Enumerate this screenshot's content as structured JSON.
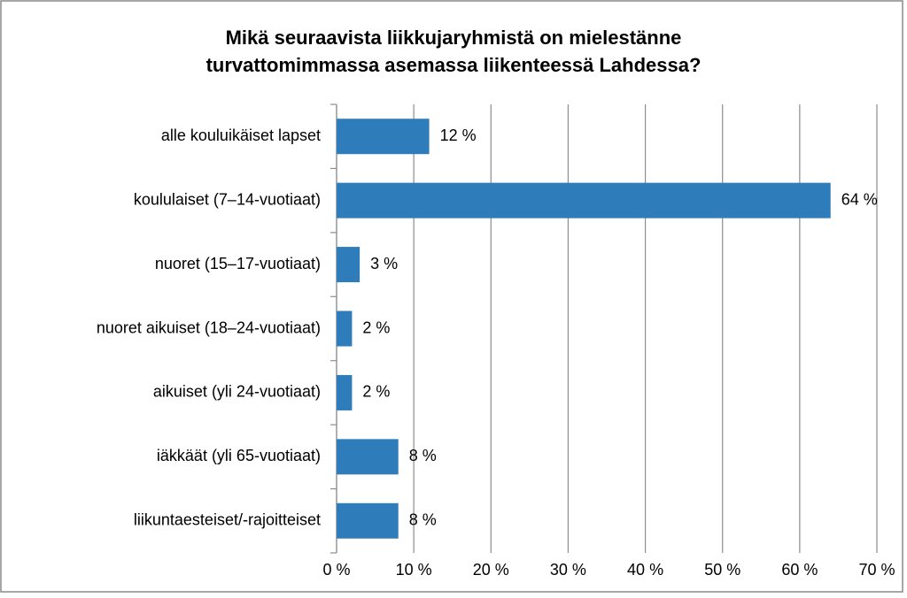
{
  "chart_data": {
    "type": "bar",
    "orientation": "horizontal",
    "title": [
      "Mikä seuraavista liikkujaryhmistä on mielestänne",
      "turvattomimmassa asemassa liikenteessä Lahdessa?"
    ],
    "categories": [
      "alle kouluikäiset lapset",
      "koululaiset (7–14-vuotiaat)",
      "nuoret (15–17-vuotiaat)",
      "nuoret aikuiset (18–24-vuotiaat)",
      "aikuiset (yli 24-vuotiaat)",
      "iäkkäät (yli 65-vuotiaat)",
      "liikuntaesteiset/-rajoitteiset"
    ],
    "values": [
      12,
      64,
      3,
      2,
      2,
      8,
      8
    ],
    "value_labels": [
      "12 %",
      "64 %",
      "3 %",
      "2 %",
      "2 %",
      "8 %",
      "8 %"
    ],
    "color": "#2e7dba",
    "xlim": [
      0,
      70
    ],
    "xticks": [
      {
        "value": 0,
        "label": "0 %"
      },
      {
        "value": 10,
        "label": "10 %"
      },
      {
        "value": 20,
        "label": "20 %"
      },
      {
        "value": 30,
        "label": "30 %"
      },
      {
        "value": 40,
        "label": "40 %"
      },
      {
        "value": 50,
        "label": "50 %"
      },
      {
        "value": 60,
        "label": "60 %"
      },
      {
        "value": 70,
        "label": "70 %"
      }
    ],
    "grid": true
  }
}
